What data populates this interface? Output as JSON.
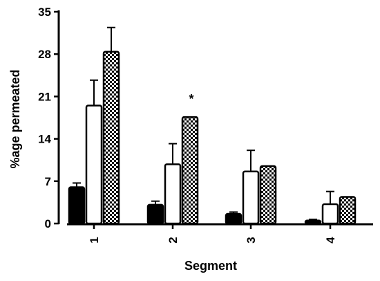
{
  "chart_data": {
    "type": "bar",
    "title": "",
    "xlabel": "Segment",
    "ylabel": "%age permeated",
    "categories": [
      "1",
      "2",
      "3",
      "4"
    ],
    "ylim": [
      0,
      35
    ],
    "yticks": [
      0,
      7,
      14,
      21,
      28,
      35
    ],
    "grid": false,
    "legend": "none",
    "series": [
      {
        "fill": "solid-black",
        "values": [
          6.0,
          3.1,
          1.6,
          0.5
        ],
        "errors": [
          0.7,
          0.6,
          0.3,
          0.2
        ]
      },
      {
        "fill": "white",
        "values": [
          19.5,
          9.8,
          8.6,
          3.2
        ],
        "errors": [
          4.2,
          3.4,
          3.5,
          2.1
        ]
      },
      {
        "fill": "checkered",
        "values": [
          28.4,
          17.6,
          9.5,
          4.4
        ],
        "errors": [
          4.0,
          0.0,
          0.0,
          0.0
        ]
      }
    ],
    "annotations": [
      {
        "category": "2",
        "series_index": 2,
        "text": "*"
      }
    ]
  },
  "colors": {
    "bar_stroke": "#000000",
    "solid_fill": "#000000",
    "open_fill": "#ffffff",
    "check_dark": "#000000",
    "check_light": "#ffffff"
  }
}
